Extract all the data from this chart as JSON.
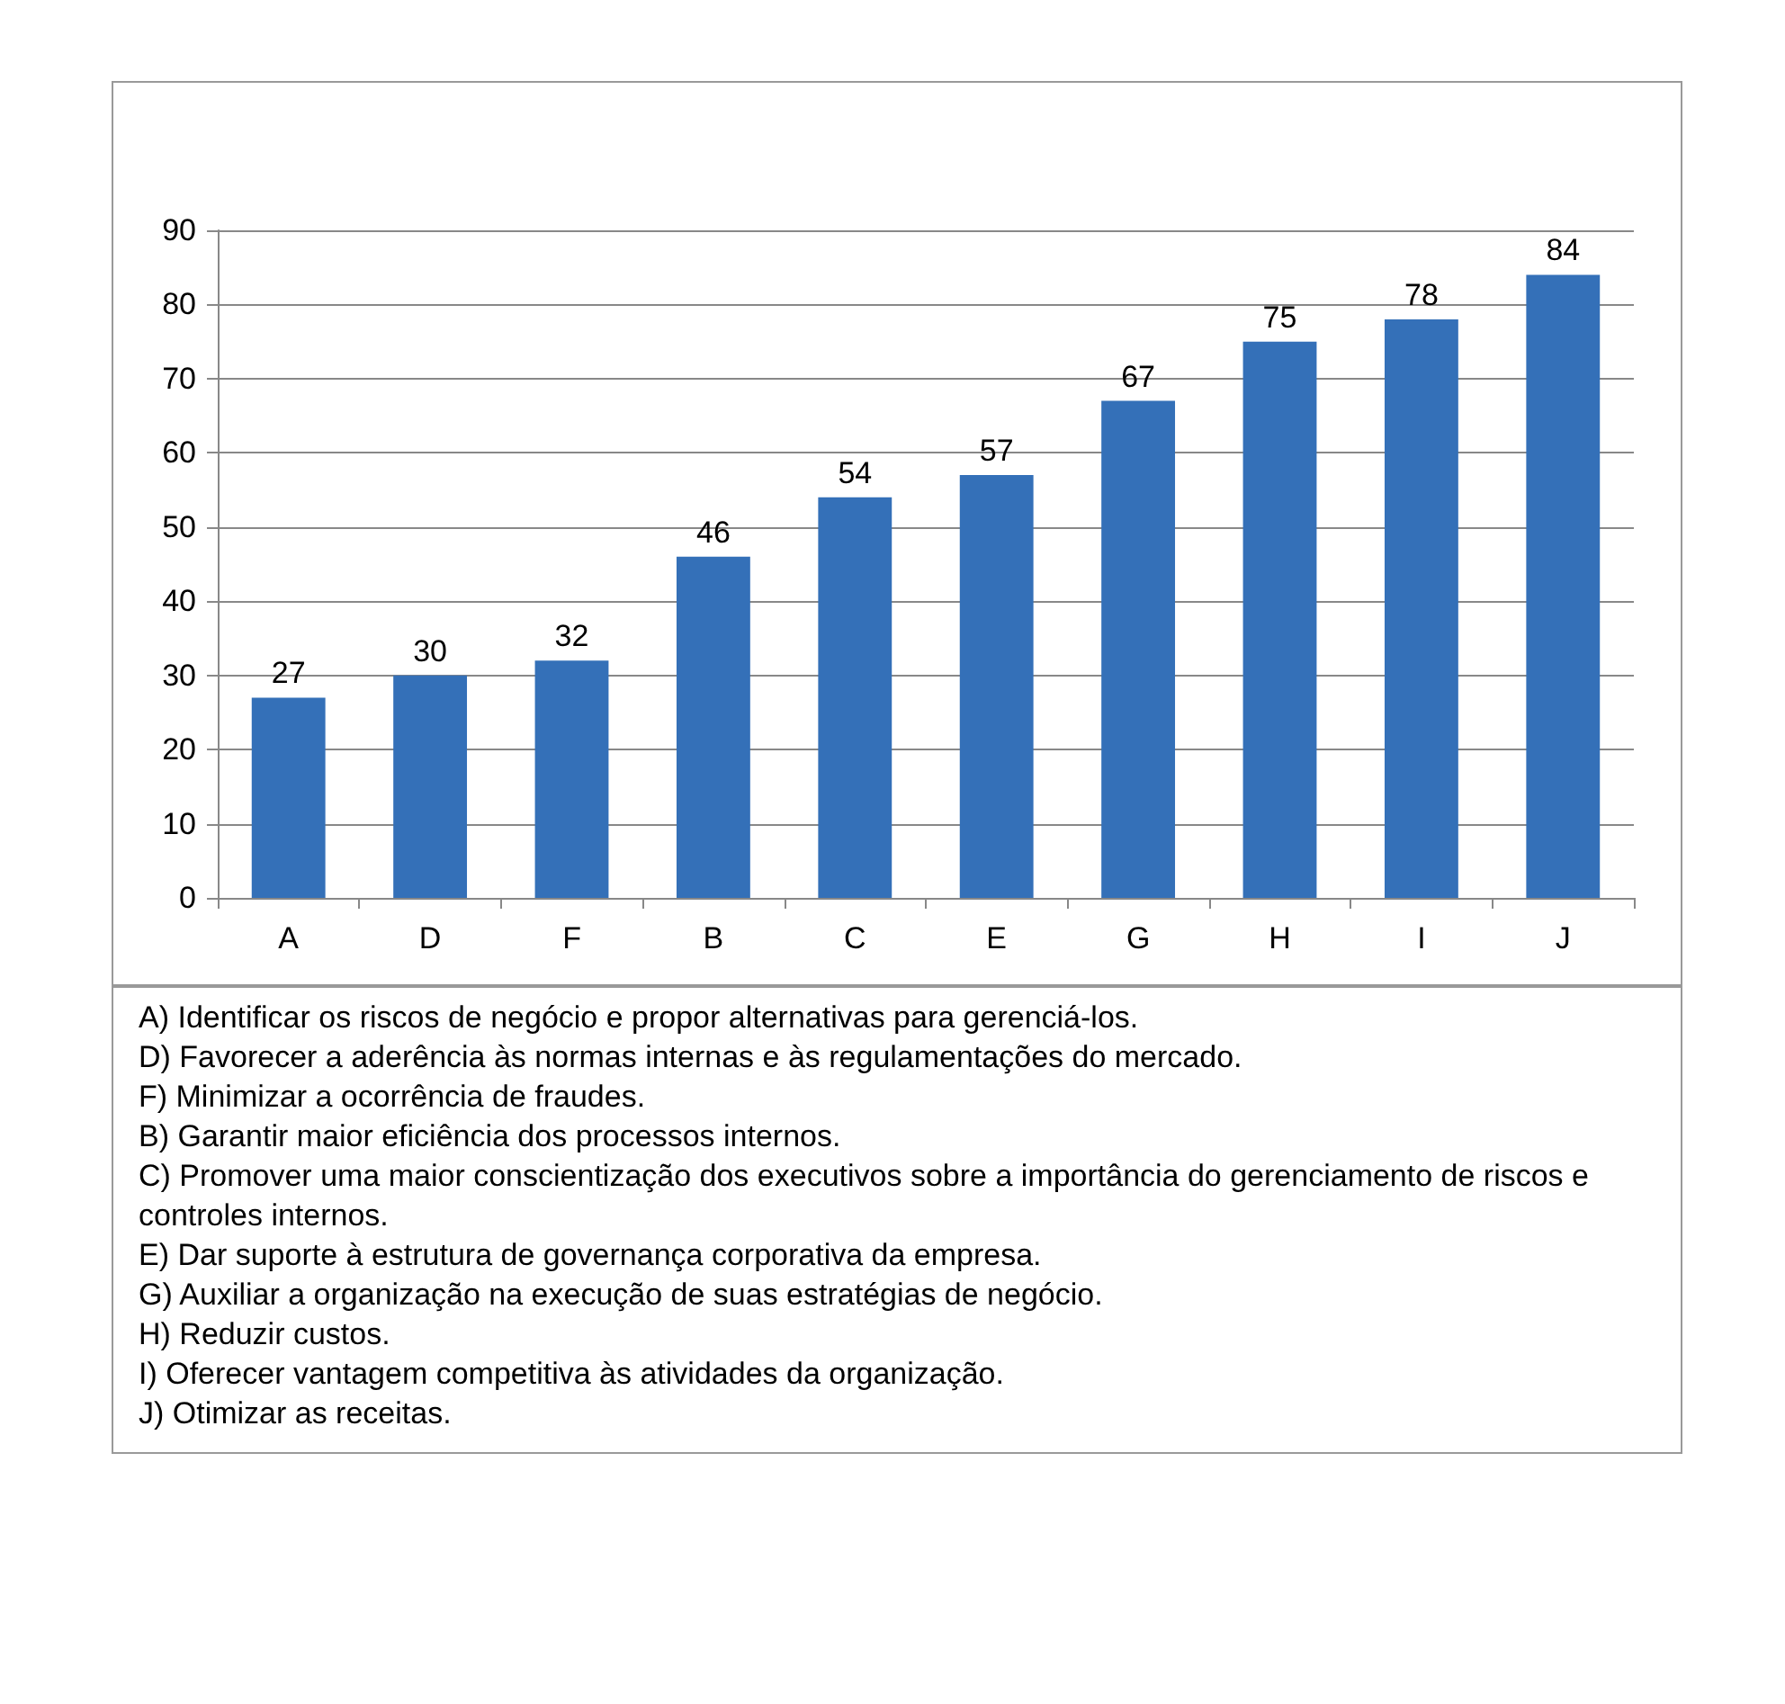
{
  "chart_data": {
    "type": "bar",
    "categories": [
      "A",
      "D",
      "F",
      "B",
      "C",
      "E",
      "G",
      "H",
      "I",
      "J"
    ],
    "values": [
      27,
      30,
      32,
      46,
      54,
      57,
      67,
      75,
      78,
      84
    ],
    "color": "#3470b8",
    "ylim": [
      0,
      90
    ],
    "yticks": [
      0,
      10,
      20,
      30,
      40,
      50,
      60,
      70,
      80,
      90
    ],
    "grid": "y",
    "data_labels": true,
    "annotations": [
      "A) Identificar os riscos de negócio e propor alternativas para gerenciá-los.",
      "D) Favorecer a aderência às normas internas e às regulamentações do mercado.",
      "F) Minimizar a ocorrência de fraudes.",
      "B) Garantir maior eficiência dos processos internos.",
      "C) Promover uma maior conscientização dos executivos sobre a importância do gerenciamento de riscos e controles internos.",
      "E) Dar suporte à estrutura de governança corporativa da empresa.",
      "G) Auxiliar a organização na execução de suas estratégias de negócio.",
      "H) Reduzir custos.",
      "I) Oferecer vantagem competitiva às atividades da organização.",
      "J) Otimizar as receitas."
    ]
  }
}
